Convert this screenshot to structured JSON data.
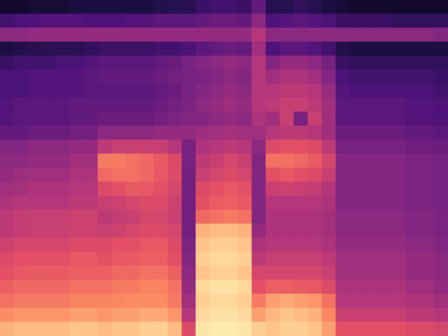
{
  "chart_data": {
    "type": "heatmap",
    "color": "magma",
    "tick_labels": false,
    "zlim": [
      0,
      100
    ],
    "cells": [
      [
        8,
        8,
        10,
        10,
        10,
        12,
        12,
        12,
        12,
        12,
        12,
        14,
        15,
        15,
        20,
        22,
        22,
        20,
        30,
        15,
        15,
        18,
        15,
        12,
        10,
        8,
        8,
        8,
        8,
        8,
        8,
        8
      ],
      [
        22,
        24,
        25,
        26,
        26,
        26,
        25,
        25,
        25,
        26,
        26,
        28,
        28,
        28,
        30,
        32,
        32,
        30,
        40,
        25,
        26,
        28,
        26,
        24,
        20,
        20,
        20,
        20,
        18,
        18,
        18,
        18
      ],
      [
        40,
        40,
        42,
        42,
        42,
        42,
        42,
        42,
        42,
        42,
        42,
        42,
        42,
        42,
        42,
        42,
        42,
        42,
        50,
        40,
        40,
        40,
        40,
        40,
        40,
        40,
        40,
        40,
        40,
        40,
        40,
        38
      ],
      [
        12,
        14,
        15,
        16,
        16,
        16,
        18,
        20,
        20,
        20,
        20,
        22,
        22,
        24,
        28,
        30,
        32,
        30,
        45,
        25,
        28,
        28,
        26,
        22,
        14,
        12,
        12,
        12,
        12,
        12,
        12,
        12
      ],
      [
        20,
        22,
        22,
        22,
        24,
        24,
        26,
        28,
        28,
        28,
        28,
        30,
        32,
        35,
        38,
        40,
        42,
        40,
        50,
        38,
        42,
        42,
        40,
        35,
        20,
        18,
        18,
        18,
        18,
        18,
        18,
        18
      ],
      [
        24,
        24,
        26,
        26,
        26,
        26,
        28,
        30,
        30,
        30,
        30,
        32,
        34,
        35,
        36,
        38,
        40,
        38,
        50,
        45,
        48,
        48,
        45,
        38,
        24,
        22,
        22,
        22,
        22,
        22,
        22,
        20
      ],
      [
        24,
        24,
        26,
        26,
        26,
        26,
        28,
        28,
        28,
        28,
        28,
        30,
        32,
        35,
        38,
        40,
        42,
        40,
        50,
        50,
        52,
        52,
        50,
        42,
        26,
        25,
        25,
        25,
        25,
        24,
        24,
        22
      ],
      [
        26,
        28,
        28,
        28,
        28,
        30,
        30,
        30,
        30,
        30,
        30,
        32,
        34,
        36,
        40,
        42,
        44,
        42,
        50,
        52,
        55,
        55,
        52,
        45,
        28,
        28,
        28,
        28,
        28,
        26,
        26,
        25
      ],
      [
        26,
        28,
        28,
        28,
        28,
        30,
        30,
        32,
        32,
        32,
        32,
        34,
        36,
        38,
        38,
        40,
        42,
        40,
        48,
        45,
        55,
        35,
        55,
        45,
        28,
        28,
        28,
        28,
        28,
        26,
        26,
        25
      ],
      [
        30,
        30,
        32,
        32,
        32,
        34,
        34,
        40,
        40,
        40,
        40,
        42,
        42,
        42,
        44,
        45,
        46,
        45,
        45,
        50,
        52,
        52,
        50,
        45,
        32,
        32,
        32,
        32,
        32,
        30,
        30,
        28
      ],
      [
        38,
        38,
        40,
        40,
        40,
        42,
        42,
        52,
        55,
        55,
        55,
        55,
        50,
        35,
        48,
        50,
        52,
        50,
        40,
        60,
        62,
        62,
        60,
        52,
        35,
        35,
        35,
        35,
        35,
        33,
        33,
        32
      ],
      [
        40,
        40,
        42,
        42,
        42,
        45,
        45,
        72,
        72,
        70,
        68,
        65,
        60,
        35,
        52,
        55,
        58,
        55,
        38,
        70,
        70,
        68,
        65,
        58,
        38,
        38,
        38,
        38,
        38,
        36,
        36,
        35
      ],
      [
        42,
        44,
        45,
        45,
        45,
        48,
        48,
        68,
        70,
        70,
        68,
        64,
        60,
        34,
        55,
        58,
        60,
        58,
        38,
        62,
        64,
        62,
        60,
        55,
        38,
        38,
        38,
        38,
        38,
        36,
        36,
        35
      ],
      [
        45,
        46,
        48,
        48,
        48,
        50,
        50,
        60,
        62,
        65,
        64,
        62,
        58,
        34,
        60,
        62,
        64,
        62,
        38,
        55,
        56,
        55,
        54,
        50,
        38,
        38,
        38,
        38,
        38,
        36,
        36,
        35
      ],
      [
        48,
        50,
        50,
        50,
        50,
        52,
        52,
        55,
        56,
        58,
        60,
        60,
        56,
        34,
        62,
        65,
        66,
        64,
        38,
        50,
        50,
        50,
        50,
        48,
        38,
        38,
        38,
        38,
        38,
        36,
        36,
        35
      ],
      [
        52,
        54,
        55,
        55,
        55,
        56,
        56,
        52,
        54,
        55,
        58,
        58,
        55,
        34,
        68,
        70,
        72,
        70,
        38,
        48,
        48,
        48,
        48,
        46,
        40,
        40,
        40,
        40,
        40,
        38,
        38,
        36
      ],
      [
        52,
        54,
        55,
        55,
        55,
        56,
        56,
        55,
        56,
        58,
        60,
        60,
        58,
        34,
        84,
        86,
        86,
        84,
        42,
        48,
        48,
        48,
        48,
        46,
        40,
        40,
        40,
        40,
        40,
        38,
        38,
        36
      ],
      [
        56,
        58,
        58,
        58,
        58,
        60,
        60,
        60,
        62,
        62,
        64,
        64,
        60,
        36,
        88,
        90,
        90,
        88,
        48,
        50,
        50,
        50,
        50,
        48,
        42,
        42,
        42,
        42,
        42,
        40,
        40,
        38
      ],
      [
        60,
        62,
        62,
        62,
        62,
        64,
        64,
        62,
        64,
        65,
        66,
        66,
        62,
        38,
        90,
        92,
        92,
        90,
        52,
        55,
        55,
        55,
        55,
        52,
        45,
        45,
        45,
        45,
        45,
        42,
        42,
        40
      ],
      [
        62,
        64,
        65,
        65,
        65,
        66,
        66,
        66,
        68,
        68,
        70,
        70,
        66,
        40,
        88,
        90,
        90,
        88,
        58,
        58,
        58,
        58,
        58,
        55,
        45,
        45,
        45,
        45,
        45,
        42,
        42,
        40
      ],
      [
        66,
        68,
        68,
        68,
        68,
        70,
        70,
        70,
        72,
        72,
        74,
        74,
        70,
        42,
        92,
        94,
        94,
        92,
        62,
        66,
        66,
        65,
        64,
        60,
        48,
        48,
        48,
        48,
        48,
        45,
        45,
        42
      ],
      [
        70,
        72,
        72,
        72,
        72,
        74,
        74,
        74,
        75,
        76,
        76,
        76,
        72,
        45,
        90,
        92,
        92,
        90,
        72,
        80,
        82,
        80,
        78,
        70,
        50,
        50,
        50,
        50,
        50,
        48,
        48,
        45
      ],
      [
        76,
        78,
        78,
        78,
        78,
        80,
        80,
        78,
        80,
        80,
        82,
        82,
        78,
        50,
        92,
        94,
        94,
        92,
        80,
        85,
        88,
        86,
        84,
        75,
        55,
        55,
        55,
        55,
        55,
        52,
        52,
        50
      ],
      [
        84,
        86,
        86,
        86,
        86,
        88,
        88,
        86,
        88,
        88,
        90,
        90,
        86,
        60,
        95,
        96,
        96,
        95,
        90,
        88,
        90,
        90,
        88,
        80,
        62,
        62,
        62,
        62,
        62,
        60,
        60,
        58
      ]
    ]
  }
}
